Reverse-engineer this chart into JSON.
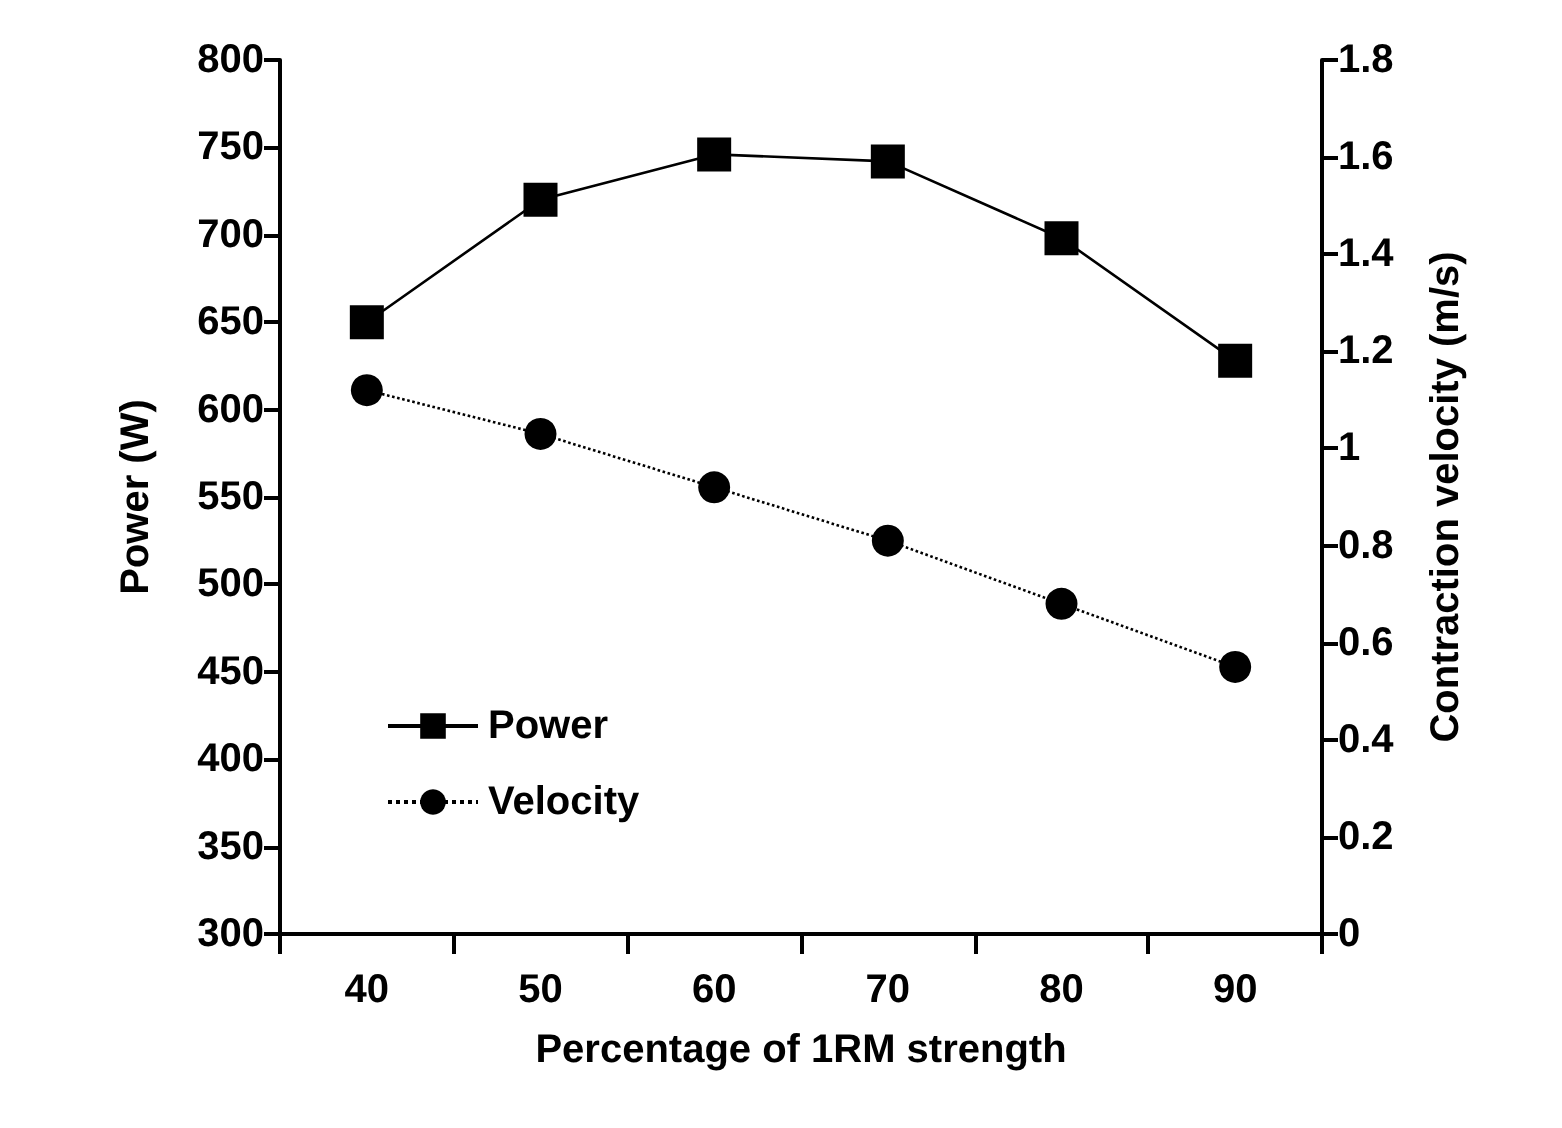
{
  "chart_data": {
    "type": "line",
    "xlabel": "Percentage of 1RM strength",
    "ylabel": "Power (W)",
    "y2label": "Contraction velocity (m/s)",
    "categories": [
      "40",
      "50",
      "60",
      "70",
      "80",
      "90"
    ],
    "series": [
      {
        "name": "Power",
        "color": "#000000",
        "values": [
          650,
          720,
          746,
          742,
          698,
          628
        ],
        "marker": "square",
        "line_style": "solid"
      },
      {
        "name": "Velocity",
        "color": "#000000",
        "values": [
          1.12,
          1.03,
          0.92,
          0.81,
          0.68,
          0.55
        ],
        "marker": "circle",
        "line_style": "dotted",
        "axis": "y2"
      }
    ],
    "ylim": [
      300,
      800
    ],
    "yticks": [
      300,
      350,
      400,
      450,
      500,
      550,
      600,
      650,
      700,
      750,
      800
    ],
    "y2lim": [
      0,
      1.8
    ],
    "y2ticks": [
      0,
      0.2,
      0.4,
      0.6,
      0.8,
      1,
      1.2,
      1.4,
      1.6,
      1.8
    ],
    "grid": false,
    "legend": "left"
  }
}
